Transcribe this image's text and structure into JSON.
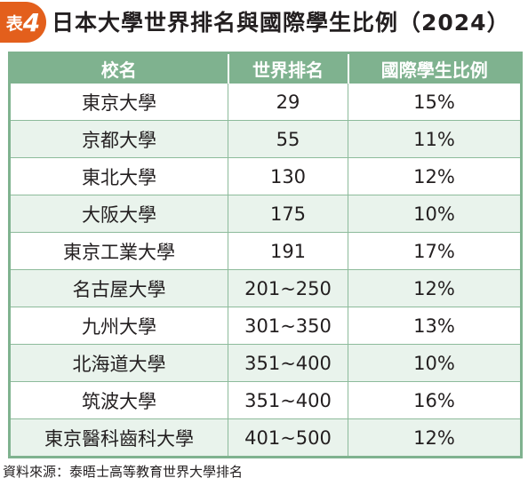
{
  "badge": {
    "label": "表",
    "number": "4"
  },
  "title": "日本大學世界排名與國際學生比例（2024）",
  "table": {
    "headers": [
      "校名",
      "世界排名",
      "國際學生比例"
    ],
    "rows": [
      [
        "東京大學",
        "29",
        "15%"
      ],
      [
        "京都大學",
        "55",
        "11%"
      ],
      [
        "東北大學",
        "130",
        "12%"
      ],
      [
        "大阪大學",
        "175",
        "10%"
      ],
      [
        "東京工業大學",
        "191",
        "17%"
      ],
      [
        "名古屋大學",
        "201~250",
        "12%"
      ],
      [
        "九州大學",
        "301~350",
        "13%"
      ],
      [
        "北海道大學",
        "351~400",
        "10%"
      ],
      [
        "筑波大學",
        "351~400",
        "16%"
      ],
      [
        "東京醫科齒科大學",
        "401~500",
        "12%"
      ]
    ]
  },
  "source": "資料來源：泰晤士高等教育世界大學排名",
  "colors": {
    "accent": "#e35f1c",
    "header": "#7fb28f",
    "stripe": "#e9f3ec"
  }
}
